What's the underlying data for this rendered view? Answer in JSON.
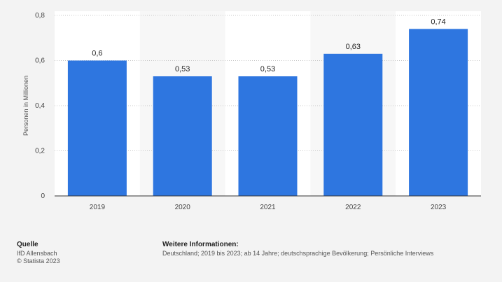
{
  "chart_data": {
    "type": "bar",
    "categories": [
      "2019",
      "2020",
      "2021",
      "2022",
      "2023"
    ],
    "values": [
      0.6,
      0.53,
      0.53,
      0.63,
      0.74
    ],
    "value_labels": [
      "0,6",
      "0,53",
      "0,53",
      "0,63",
      "0,74"
    ],
    "ylabel": "Personen in Millionen",
    "xlabel": "",
    "ylim": [
      0,
      0.8
    ],
    "yticks": [
      0,
      0.2,
      0.4,
      0.6,
      0.8
    ],
    "ytick_labels": [
      "0",
      "0,2",
      "0,4",
      "0,6",
      "0,8"
    ],
    "grid": true,
    "bar_color": "#2e76e0"
  },
  "footer": {
    "source_heading": "Quelle",
    "source_lines": [
      "IfD Allensbach",
      "© Statista 2023"
    ],
    "info_heading": "Weitere Informationen:",
    "info_text": "Deutschland; 2019 bis 2023; ab 14 Jahre; deutschsprachige Bevölkerung; Persönliche Interviews"
  }
}
